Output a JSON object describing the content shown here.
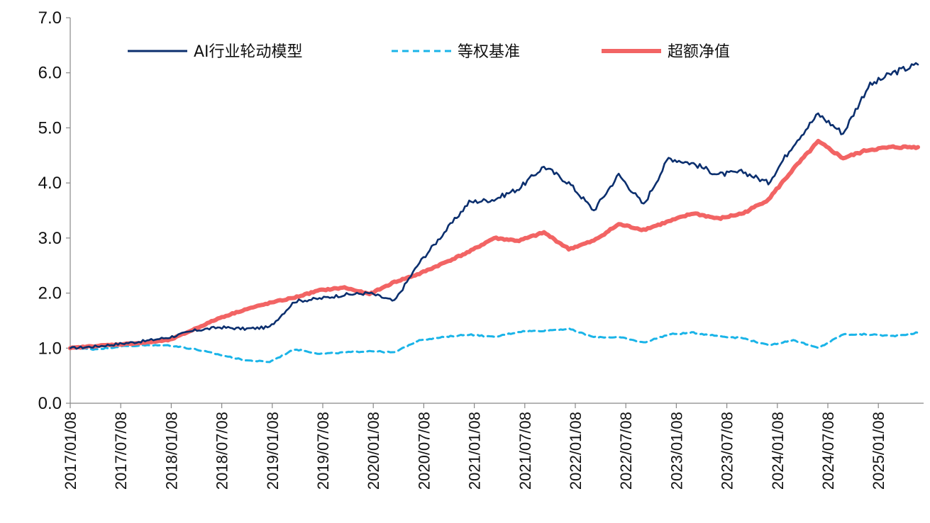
{
  "chart_data": {
    "type": "line",
    "title": "",
    "xlabel": "",
    "ylabel": "",
    "ylim": [
      0,
      7
    ],
    "yticks": [
      "0.0",
      "1.0",
      "2.0",
      "3.0",
      "4.0",
      "5.0",
      "6.0",
      "7.0"
    ],
    "xticks": [
      "2017/01/08",
      "2017/07/08",
      "2018/01/08",
      "2018/07/08",
      "2019/01/08",
      "2019/07/08",
      "2020/01/08",
      "2020/07/08",
      "2021/01/08",
      "2021/07/08",
      "2022/01/08",
      "2022/07/08",
      "2023/01/08",
      "2023/07/08",
      "2024/01/08",
      "2024/07/08",
      "2025/01/08"
    ],
    "grid": false,
    "legend_position": "top",
    "x": [
      "2017/01",
      "2017/04",
      "2017/07",
      "2017/10",
      "2018/01",
      "2018/04",
      "2018/07",
      "2018/10",
      "2019/01",
      "2019/04",
      "2019/07",
      "2019/10",
      "2020/01",
      "2020/04",
      "2020/07",
      "2020/10",
      "2021/01",
      "2021/04",
      "2021/07",
      "2021/10",
      "2022/01",
      "2022/04",
      "2022/07",
      "2022/10",
      "2023/01",
      "2023/04",
      "2023/07",
      "2023/10",
      "2024/01",
      "2024/04",
      "2024/07",
      "2024/10",
      "2025/01",
      "2025/04",
      "2025/07"
    ],
    "series": [
      {
        "name": "AI行业轮动模型",
        "color": "#0b2f6e",
        "style": "solid",
        "values": [
          1.0,
          1.03,
          1.08,
          1.13,
          1.2,
          1.32,
          1.38,
          1.35,
          1.38,
          1.85,
          1.9,
          1.97,
          2.0,
          1.85,
          2.55,
          3.1,
          3.65,
          3.7,
          3.9,
          4.3,
          4.0,
          3.5,
          4.15,
          3.6,
          4.45,
          4.35,
          4.15,
          4.2,
          4.0,
          4.7,
          5.25,
          4.9,
          5.75,
          6.0,
          6.15
        ]
      },
      {
        "name": "等权基准",
        "color": "#1ab4e8",
        "style": "dashed",
        "values": [
          1.0,
          0.98,
          1.03,
          1.05,
          1.05,
          0.98,
          0.88,
          0.78,
          0.75,
          0.98,
          0.9,
          0.92,
          0.95,
          0.92,
          1.15,
          1.2,
          1.25,
          1.2,
          1.3,
          1.32,
          1.35,
          1.2,
          1.2,
          1.1,
          1.25,
          1.28,
          1.22,
          1.18,
          1.05,
          1.15,
          1.0,
          1.25,
          1.25,
          1.22,
          1.28
        ]
      },
      {
        "name": "超额净值",
        "color": "#f26464",
        "style": "solid",
        "values": [
          1.0,
          1.04,
          1.07,
          1.1,
          1.15,
          1.35,
          1.55,
          1.7,
          1.82,
          1.92,
          2.05,
          2.1,
          1.98,
          2.2,
          2.35,
          2.55,
          2.75,
          3.0,
          2.95,
          3.1,
          2.8,
          2.95,
          3.25,
          3.15,
          3.3,
          3.45,
          3.35,
          3.45,
          3.7,
          4.25,
          4.75,
          4.45,
          4.6,
          4.65,
          4.65
        ]
      }
    ]
  }
}
